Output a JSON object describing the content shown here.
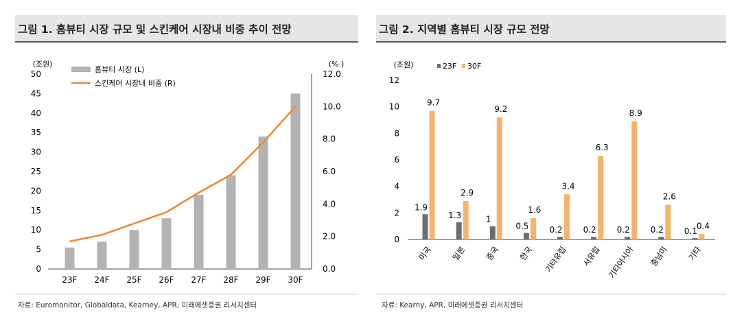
{
  "chart_data": [
    {
      "type": "bar+line",
      "title": "그림 1. 홈뷰티 시장 규모 및 스킨케어 시장내 비중 추이 전망",
      "source": "자료: Euromonitor, Globaldata, Kearney, APR, 미래에셋증권 리서치센터",
      "categories": [
        "23F",
        "24F",
        "25F",
        "26F",
        "27F",
        "28F",
        "29F",
        "30F"
      ],
      "left_axis": {
        "unit": "(조원)",
        "ylim": [
          0,
          50
        ],
        "ticks": [
          "0",
          "5",
          "10",
          "15",
          "20",
          "25",
          "30",
          "35",
          "40",
          "45",
          "50"
        ]
      },
      "right_axis": {
        "unit": "(% )",
        "ylim": [
          0,
          12
        ],
        "ticks": [
          "0.0",
          "2.0",
          "4.0",
          "6.0",
          "8.0",
          "10.0",
          "12.0"
        ]
      },
      "series": [
        {
          "name": "홈뷰티 시장 (L)",
          "kind": "bar",
          "axis": "left",
          "color": "#b3b3b3",
          "values": [
            5.5,
            7,
            10,
            13,
            19,
            24,
            34,
            45
          ]
        },
        {
          "name": "스킨케어 시장내 비중 (R)",
          "kind": "line",
          "axis": "right",
          "color": "#f0862e",
          "values": [
            1.7,
            2.1,
            2.8,
            3.5,
            4.7,
            5.8,
            7.8,
            10.0
          ]
        }
      ],
      "legend_placement": "top-left",
      "grid": false
    },
    {
      "type": "bar",
      "title": "그림 2. 지역별 홈뷰티 시장 규모 전망",
      "source": "자료: Kearny, APR, 미래에셋증권 리서치센터",
      "categories": [
        "미국",
        "일본",
        "중국",
        "한국",
        "기타유럽",
        "서유럽",
        "기타아시아",
        "중남미",
        "기타"
      ],
      "y_axis": {
        "unit": "(조원)",
        "ylim": [
          0,
          12
        ],
        "ticks": [
          "0",
          "2",
          "4",
          "6",
          "8",
          "10",
          "12"
        ]
      },
      "series": [
        {
          "name": "23F",
          "color": "#6d6d6d",
          "values": [
            1.9,
            1.3,
            1,
            0.5,
            0.2,
            0.2,
            0.2,
            0.2,
            0.1
          ],
          "labels": [
            "1.9",
            "1.3",
            "1",
            "0.5",
            "0.2",
            "0.2",
            "0.2",
            "0.2",
            "0.1"
          ]
        },
        {
          "name": "30F",
          "color": "#f4b46a",
          "values": [
            9.7,
            2.9,
            9.2,
            1.6,
            3.4,
            6.3,
            8.9,
            2.6,
            0.4
          ],
          "labels": [
            "9.7",
            "2.9",
            "9.2",
            "1.6",
            "3.4",
            "6.3",
            "8.9",
            "2.6",
            "0.4"
          ]
        }
      ],
      "legend_placement": "top-left",
      "grid": false
    }
  ]
}
